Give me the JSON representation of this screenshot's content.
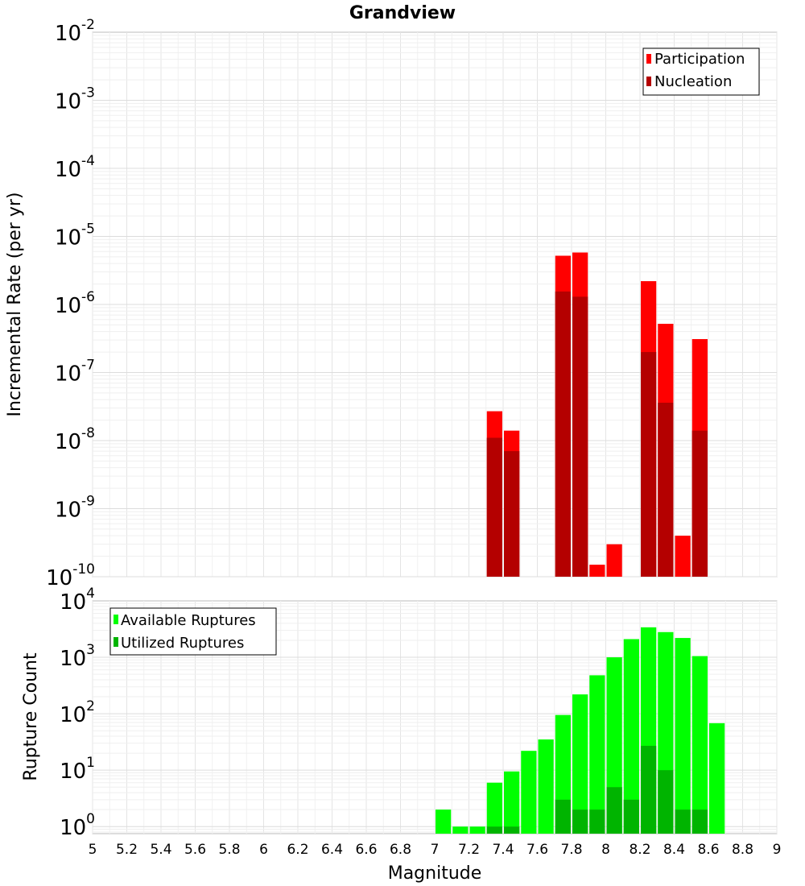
{
  "chart_data": [
    {
      "type": "bar",
      "title": "Grandview",
      "xlabel": "",
      "ylabel": "Incremental Rate (per yr)",
      "yscale": "log",
      "ylim": [
        1e-10,
        0.01
      ],
      "xlim": [
        5,
        9
      ],
      "bin_width": 0.1,
      "ytick_exponents": [
        "-2",
        "-3",
        "-4",
        "-5",
        "-6",
        "-7",
        "-8",
        "-9",
        "-10"
      ],
      "ytick_base": "10",
      "legend": {
        "placement": "top-right"
      },
      "series": [
        {
          "name": "Participation",
          "color": "#ff0000",
          "x": [
            7.35,
            7.45,
            7.75,
            7.85,
            7.95,
            8.05,
            8.25,
            8.35,
            8.45,
            8.55
          ],
          "values": [
            2.7e-08,
            1.4e-08,
            5.2e-06,
            5.8e-06,
            1.5e-10,
            3e-10,
            2.2e-06,
            5.2e-07,
            4e-10,
            3.1e-07
          ]
        },
        {
          "name": "Nucleation",
          "color": "#b40000",
          "x": [
            7.35,
            7.45,
            7.75,
            7.85,
            8.25,
            8.35,
            8.55
          ],
          "values": [
            1.1e-08,
            7e-09,
            1.55e-06,
            1.3e-06,
            2e-07,
            3.6e-08,
            1.4e-08
          ]
        }
      ]
    },
    {
      "type": "bar",
      "title": "",
      "xlabel": "Magnitude",
      "ylabel": "Rupture Count",
      "yscale": "log",
      "ylim": [
        0.75,
        10000
      ],
      "xlim": [
        5,
        9
      ],
      "bin_width": 0.1,
      "ytick_exponents": [
        "4",
        "3",
        "2",
        "1",
        "0"
      ],
      "ytick_base": "10",
      "xticks": [
        "5",
        "5.2",
        "5.4",
        "5.6",
        "5.8",
        "6",
        "6.2",
        "6.4",
        "6.6",
        "6.8",
        "7",
        "7.2",
        "7.4",
        "7.6",
        "7.8",
        "8",
        "8.2",
        "8.4",
        "8.6",
        "8.8",
        "9"
      ],
      "legend": {
        "placement": "top-left"
      },
      "series": [
        {
          "name": "Available Ruptures",
          "color": "#00ff00",
          "x": [
            7.05,
            7.15,
            7.25,
            7.35,
            7.45,
            7.55,
            7.65,
            7.75,
            7.85,
            7.95,
            8.05,
            8.15,
            8.25,
            8.35,
            8.45,
            8.55,
            8.65
          ],
          "values": [
            2,
            1,
            1,
            6,
            9.5,
            22,
            35,
            95,
            220,
            480,
            1000,
            2100,
            3400,
            2800,
            2200,
            1050,
            68
          ]
        },
        {
          "name": "Utilized Ruptures",
          "color": "#00b400",
          "x": [
            7.35,
            7.45,
            7.75,
            7.85,
            7.95,
            8.05,
            8.15,
            8.25,
            8.35,
            8.45,
            8.55
          ],
          "values": [
            1,
            1,
            3,
            2,
            2,
            5,
            3,
            27,
            10,
            2,
            2
          ]
        }
      ]
    }
  ]
}
